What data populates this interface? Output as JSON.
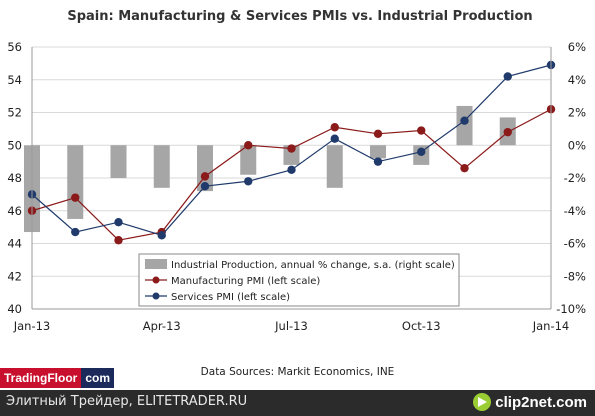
{
  "chart_data": {
    "type": "bar+line",
    "title": "Spain: Manufacturing & Services PMIs vs. Industrial Production",
    "x_tick_labels": [
      "Jan-13",
      "Apr-13",
      "Jul-13",
      "Oct-13",
      "Jan-14"
    ],
    "x_tick_index": [
      0,
      3,
      6,
      9,
      12
    ],
    "left_axis": {
      "ylim": [
        40,
        56
      ],
      "ticks": [
        "40",
        "42",
        "44",
        "46",
        "48",
        "50",
        "52",
        "54",
        "56"
      ]
    },
    "right_axis": {
      "ylim": [
        -10,
        6
      ],
      "ticks": [
        "-10%",
        "-8%",
        "-6%",
        "-4%",
        "-2%",
        "0%",
        "2%",
        "4%",
        "6%"
      ]
    },
    "grid": true,
    "legend_placement": "bottom-center",
    "series": [
      {
        "name": "Industrial Production, annual % change, s.a. (right scale)",
        "type": "bar",
        "axis": "right",
        "color": "#a6a6a6",
        "values": [
          -5.3,
          -4.5,
          -2.0,
          -2.6,
          -2.8,
          -1.8,
          -1.2,
          -2.6,
          -0.8,
          -1.2,
          2.4,
          1.7,
          null
        ]
      },
      {
        "name": "Manufacturing PMI (left scale)",
        "type": "line",
        "axis": "left",
        "color": "#8b1a1a",
        "values": [
          46.0,
          46.8,
          44.2,
          44.7,
          48.1,
          50.0,
          49.8,
          51.1,
          50.7,
          50.9,
          48.6,
          50.8,
          52.2
        ]
      },
      {
        "name": "Services PMI (left scale)",
        "type": "line",
        "axis": "left",
        "color": "#1f3a6b",
        "values": [
          47.0,
          44.7,
          45.3,
          44.5,
          47.5,
          47.8,
          48.5,
          50.4,
          49.0,
          49.6,
          51.5,
          54.2,
          54.9
        ]
      }
    ]
  },
  "source_text": "Data Sources: Markit Economics,  INE",
  "logo": {
    "left": "TradingFloor",
    "right": "com"
  },
  "footer": {
    "text": "Элитный Трейдер, ELITETRADER.RU",
    "brand": "clip2net.com"
  }
}
